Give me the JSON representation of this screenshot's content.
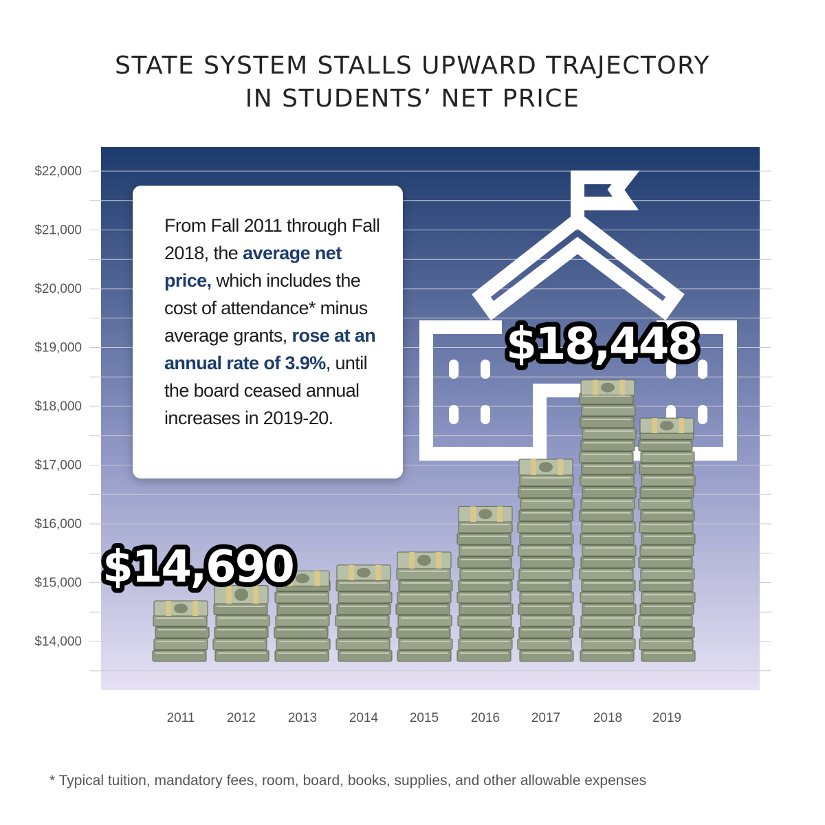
{
  "title": {
    "line1": "STATE SYSTEM STALLS UPWARD TRAJECTORY",
    "line2": "IN STUDENTS’ NET PRICE"
  },
  "callout": {
    "part1": "From Fall 2011 through Fall 2018, the ",
    "highlight1": "average net price,",
    "part2": " which includes the cost of attendance* minus average grants, ",
    "highlight2": "rose at an annual rate of 3.9%",
    "part3": ", until the board ceased annual increases in 2019-20."
  },
  "footnote": "* Typical tuition, mandatory fees, room, board, books, supplies, and other allowable expenses",
  "colors": {
    "bg_top": "#1c3a6c",
    "bg_bottom": "#e6e1f4",
    "highlight": "#1c3c6e",
    "money": "#8f9a80",
    "band": "#d8c88a"
  },
  "chart_data": {
    "type": "bar",
    "categories": [
      "2011",
      "2012",
      "2013",
      "2014",
      "2015",
      "2016",
      "2017",
      "2018",
      "2019"
    ],
    "values": [
      14690,
      14950,
      15200,
      15300,
      15520,
      16300,
      17100,
      18448,
      17800
    ],
    "ylim": [
      13500,
      22200
    ],
    "yticks": [
      14000,
      15000,
      16000,
      17000,
      18000,
      19000,
      20000,
      21000,
      22000
    ],
    "ytick_labels": [
      "$14,000",
      "$15,000",
      "$16,000",
      "$17,000",
      "$18,000",
      "$19,000",
      "$20,000",
      "$21,000",
      "$22,000"
    ],
    "annotations": [
      {
        "category": "2011",
        "text": "$14,690"
      },
      {
        "category": "2018",
        "text": "$18,448"
      }
    ],
    "grid": true
  }
}
